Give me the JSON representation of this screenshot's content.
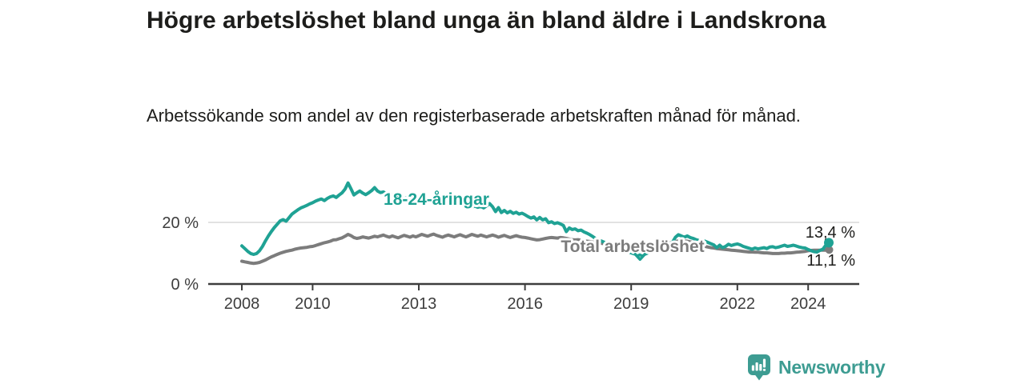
{
  "title": "Högre arbetslöshet bland unga än bland äldre i Landskrona",
  "subtitle": "Arbetssökande som andel av den registerbaserade arbetskraften månad för månad.",
  "branding": {
    "logo_text": "Newsworthy",
    "logo_icon": "newsworthy-speech-bubble-bar-chart-icon",
    "logo_color": "#3d9c92"
  },
  "chart_data": {
    "type": "line",
    "title": "Högre arbetslöshet bland unga än bland äldre i Landskrona",
    "subtitle": "Arbetssökande som andel av den registerbaserade arbetskraften månad för månad.",
    "unit": "%",
    "frequency": "monthly",
    "x_start": "2008-01",
    "x_end": "2024-08",
    "x_tick_years": [
      2008,
      2010,
      2013,
      2016,
      2019,
      2022,
      2024
    ],
    "x_tick_labels": [
      "2008",
      "2010",
      "2013",
      "2016",
      "2019",
      "2022",
      "2024"
    ],
    "y_ticks": [
      {
        "value": 0,
        "label": "0 %"
      },
      {
        "value": 20,
        "label": "20 %"
      }
    ],
    "ylim": [
      0,
      36
    ],
    "grid": "20%-line only",
    "legend_position": "inline labels on lines",
    "colors": {
      "youth": "#1fa294",
      "total": "#7c7c7c",
      "grid": "#d9d9d9",
      "axis": "#3d3d3d",
      "tick_text": "#3d3d3d",
      "value_text": "#1d1d1b"
    },
    "series": [
      {
        "id": "youth",
        "name": "18-24-åringar",
        "color": "#1fa294",
        "end_label": "13,4 %",
        "end_value": 13.4,
        "min_marker": {
          "index": 135,
          "value": 9.4,
          "shape": "chevron-down"
        },
        "values": [
          12.4,
          11.5,
          10.6,
          9.9,
          9.6,
          9.9,
          10.8,
          12.2,
          14.0,
          15.6,
          17.0,
          18.3,
          19.4,
          20.5,
          20.9,
          20.4,
          21.5,
          22.7,
          23.4,
          24.1,
          24.7,
          25.1,
          25.5,
          26.0,
          26.4,
          26.9,
          27.3,
          27.6,
          27.1,
          27.8,
          28.3,
          28.6,
          28.1,
          28.9,
          29.6,
          30.8,
          32.8,
          30.9,
          28.9,
          29.6,
          30.2,
          29.5,
          29.0,
          29.6,
          30.3,
          31.3,
          30.2,
          29.7,
          29.9,
          29.3,
          28.7,
          29.0,
          28.4,
          27.9,
          28.3,
          27.7,
          28.0,
          27.3,
          26.9,
          27.2,
          27.5,
          27.0,
          26.6,
          27.0,
          27.4,
          26.9,
          26.5,
          26.8,
          26.3,
          25.9,
          26.2,
          25.8,
          26.1,
          26.5,
          26.0,
          25.6,
          25.9,
          25.4,
          25.0,
          25.3,
          24.9,
          25.2,
          24.7,
          25.4,
          26.1,
          25.1,
          23.5,
          24.8,
          23.2,
          23.9,
          23.1,
          23.6,
          22.9,
          23.3,
          22.7,
          23.0,
          22.5,
          21.9,
          21.4,
          21.8,
          20.8,
          21.6,
          20.8,
          21.2,
          19.9,
          20.2,
          19.6,
          19.9,
          19.5,
          19.0,
          17.0,
          18.2,
          17.7,
          17.9,
          17.3,
          17.5,
          16.9,
          16.5,
          16.0,
          15.4,
          14.7,
          14.3,
          13.9,
          13.5,
          13.0,
          12.6,
          12.2,
          11.9,
          11.5,
          11.1,
          10.7,
          10.4,
          10.1,
          9.8,
          9.6,
          9.4,
          9.5,
          9.8,
          10.2,
          10.6,
          10.9,
          11.2,
          11.6,
          12.0,
          12.5,
          13.0,
          13.6,
          15.2,
          16.0,
          15.6,
          15.2,
          15.6,
          15.1,
          14.8,
          14.4,
          14.1,
          14.3,
          13.9,
          13.5,
          13.1,
          12.7,
          11.8,
          12.6,
          11.8,
          12.2,
          12.9,
          12.5,
          12.8,
          13.0,
          12.7,
          12.2,
          11.9,
          11.6,
          11.3,
          11.7,
          11.4,
          11.6,
          11.8,
          11.5,
          12.0,
          12.1,
          11.8,
          12.0,
          12.3,
          12.6,
          12.2,
          12.4,
          12.6,
          12.3,
          12.0,
          11.8,
          11.7,
          11.2,
          10.8,
          10.5,
          10.4,
          10.9,
          11.3,
          12.6,
          13.4
        ]
      },
      {
        "id": "total",
        "name": "Total arbetslöshet",
        "color": "#7c7c7c",
        "end_label": "11,1 %",
        "end_value": 11.1,
        "values": [
          7.4,
          7.2,
          7.0,
          6.8,
          6.7,
          6.8,
          7.0,
          7.4,
          7.8,
          8.3,
          8.8,
          9.2,
          9.6,
          10.0,
          10.3,
          10.6,
          10.8,
          11.0,
          11.3,
          11.5,
          11.7,
          11.8,
          11.9,
          12.1,
          12.2,
          12.5,
          12.8,
          13.1,
          13.4,
          13.6,
          13.9,
          14.3,
          14.4,
          14.7,
          15.0,
          15.5,
          16.1,
          15.7,
          15.1,
          14.8,
          15.0,
          15.3,
          15.1,
          14.9,
          15.2,
          15.5,
          15.3,
          15.6,
          15.9,
          15.5,
          15.2,
          15.6,
          15.3,
          15.0,
          15.4,
          15.8,
          15.5,
          15.2,
          15.6,
          15.3,
          15.7,
          16.1,
          15.8,
          15.5,
          15.9,
          16.2,
          15.8,
          15.5,
          15.2,
          15.6,
          15.9,
          15.6,
          15.3,
          15.7,
          16.0,
          15.6,
          15.3,
          15.7,
          16.1,
          15.8,
          15.5,
          15.9,
          15.6,
          15.3,
          15.6,
          15.9,
          15.6,
          15.2,
          15.5,
          15.8,
          15.4,
          15.1,
          15.4,
          15.7,
          15.4,
          15.2,
          15.1,
          14.9,
          14.7,
          14.5,
          14.3,
          14.4,
          14.6,
          14.8,
          15.0,
          15.1,
          15.0,
          14.9,
          15.1,
          15.0,
          14.8,
          14.6,
          14.4,
          14.3,
          14.4,
          14.2,
          14.0,
          13.9,
          13.8,
          13.6,
          13.5,
          13.4,
          13.2,
          13.1,
          13.0,
          12.9,
          12.8,
          12.9,
          12.8,
          12.7,
          12.8,
          12.7,
          12.6,
          12.5,
          12.4,
          12.4,
          12.5,
          12.6,
          12.7,
          12.8,
          12.9,
          13.0,
          13.0,
          13.1,
          13.2,
          13.3,
          13.5,
          13.8,
          14.0,
          14.1,
          14.0,
          13.9,
          13.7,
          13.5,
          13.3,
          12.6,
          12.4,
          12.2,
          12.0,
          11.8,
          11.7,
          11.5,
          11.4,
          11.3,
          11.2,
          11.1,
          11.0,
          10.9,
          10.8,
          10.7,
          10.6,
          10.5,
          10.4,
          10.4,
          10.3,
          10.3,
          10.2,
          10.1,
          10.1,
          10.0,
          9.9,
          9.9,
          9.9,
          10.0,
          10.0,
          10.1,
          10.1,
          10.2,
          10.3,
          10.4,
          10.5,
          10.6,
          10.8,
          10.9,
          11.0,
          11.0,
          11.0,
          11.0,
          11.0,
          11.1
        ]
      }
    ]
  }
}
